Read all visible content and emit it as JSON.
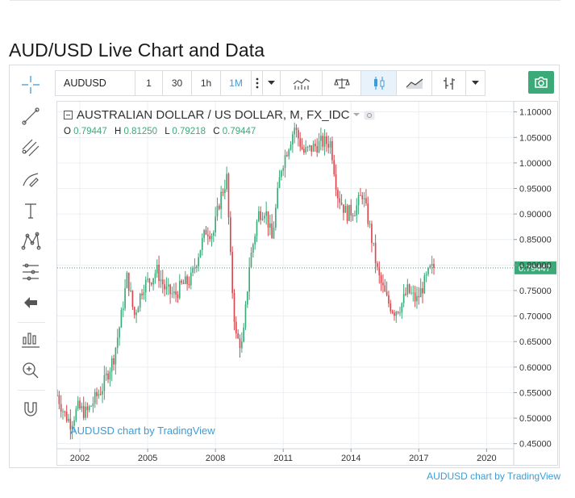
{
  "page": {
    "title": "AUD/USD Live Chart and Data",
    "footer_link": "AUDUSD chart by TradingView"
  },
  "toolbar": {
    "symbol": "AUDUSD",
    "intervals": [
      "1",
      "30",
      "1h",
      "1M"
    ],
    "active_interval": "1M",
    "more_icon": "vertical-dots-icon",
    "dropdown_icon": "caret-down-icon",
    "indicators_icon": "indicators-icon",
    "compare_icon": "scales-icon",
    "chart_style_icon": "candles-icon",
    "line_style_icon": "area-line-icon",
    "bar_style_icon": "bars-icon",
    "snapshot_icon": "camera-icon"
  },
  "sidebar": {
    "tools": [
      "crosshair-icon",
      "trend-line-icon",
      "pitchfork-icon",
      "brush-icon",
      "text-icon",
      "pattern-icon",
      "measure-icon",
      "arrow-back-icon",
      "forecast-icon",
      "zoom-in-icon",
      "magnet-icon"
    ]
  },
  "colors": {
    "up": "#3ca978",
    "down": "#d9464c",
    "accent": "#3c9cd7",
    "grid": "#eceff3"
  },
  "chart_data": {
    "type": "candlestick",
    "title": "AUSTRALIAN DOLLAR / US DOLLAR, M, FX_IDC",
    "ohlc_labels": {
      "open_label": "O",
      "open": "0.79447",
      "high_label": "H",
      "high": "0.81250",
      "low_label": "L",
      "low": "0.79218",
      "close_label": "C",
      "close": "0.79447"
    },
    "last_price": 0.79447,
    "last_price_label": "0.79447",
    "x_ticks": [
      "2002",
      "2005",
      "2008",
      "2011",
      "2014",
      "2017",
      "2020"
    ],
    "x_tick_years": [
      2002,
      2005,
      2008,
      2011,
      2014,
      2017,
      2020
    ],
    "x_range": [
      2001.0,
      2021.2
    ],
    "y_ticks": [
      0.45,
      0.5,
      0.55,
      0.6,
      0.65,
      0.7,
      0.75,
      0.8,
      0.85,
      0.9,
      0.95,
      1.0,
      1.05,
      1.1
    ],
    "y_tick_labels": [
      "0.45000",
      "0.50000",
      "0.55000",
      "0.60000",
      "0.65000",
      "0.70000",
      "0.75000",
      "0.80000",
      "0.85000",
      "0.90000",
      "0.95000",
      "1.00000",
      "1.05000",
      "1.10000"
    ],
    "y_range": [
      0.44,
      1.12
    ],
    "start_year": 2001.0,
    "close_path": [
      [
        2001.0,
        0.545
      ],
      [
        2001.3,
        0.51
      ],
      [
        2001.6,
        0.49
      ],
      [
        2001.9,
        0.52
      ],
      [
        2002.3,
        0.51
      ],
      [
        2002.7,
        0.54
      ],
      [
        2003.0,
        0.56
      ],
      [
        2003.5,
        0.62
      ],
      [
        2003.8,
        0.69
      ],
      [
        2004.1,
        0.78
      ],
      [
        2004.4,
        0.7
      ],
      [
        2004.8,
        0.76
      ],
      [
        2005.1,
        0.77
      ],
      [
        2005.4,
        0.79
      ],
      [
        2005.8,
        0.75
      ],
      [
        2006.2,
        0.74
      ],
      [
        2006.5,
        0.76
      ],
      [
        2006.9,
        0.77
      ],
      [
        2007.3,
        0.83
      ],
      [
        2007.6,
        0.87
      ],
      [
        2007.9,
        0.86
      ],
      [
        2008.2,
        0.93
      ],
      [
        2008.5,
        0.97
      ],
      [
        2008.7,
        0.78
      ],
      [
        2008.9,
        0.66
      ],
      [
        2009.2,
        0.64
      ],
      [
        2009.5,
        0.8
      ],
      [
        2009.9,
        0.9
      ],
      [
        2010.2,
        0.91
      ],
      [
        2010.5,
        0.85
      ],
      [
        2010.9,
        0.99
      ],
      [
        2011.2,
        1.03
      ],
      [
        2011.5,
        1.07
      ],
      [
        2011.9,
        1.02
      ],
      [
        2012.3,
        1.03
      ],
      [
        2012.7,
        1.04
      ],
      [
        2013.1,
        1.04
      ],
      [
        2013.4,
        0.94
      ],
      [
        2013.8,
        0.9
      ],
      [
        2014.2,
        0.91
      ],
      [
        2014.5,
        0.94
      ],
      [
        2014.8,
        0.88
      ],
      [
        2015.2,
        0.78
      ],
      [
        2015.6,
        0.73
      ],
      [
        2015.9,
        0.71
      ],
      [
        2016.2,
        0.72
      ],
      [
        2016.5,
        0.75
      ],
      [
        2016.9,
        0.73
      ],
      [
        2017.2,
        0.76
      ],
      [
        2017.5,
        0.79
      ],
      [
        2017.7,
        0.794
      ]
    ]
  },
  "watermark": "AUDUSD chart by TradingView"
}
